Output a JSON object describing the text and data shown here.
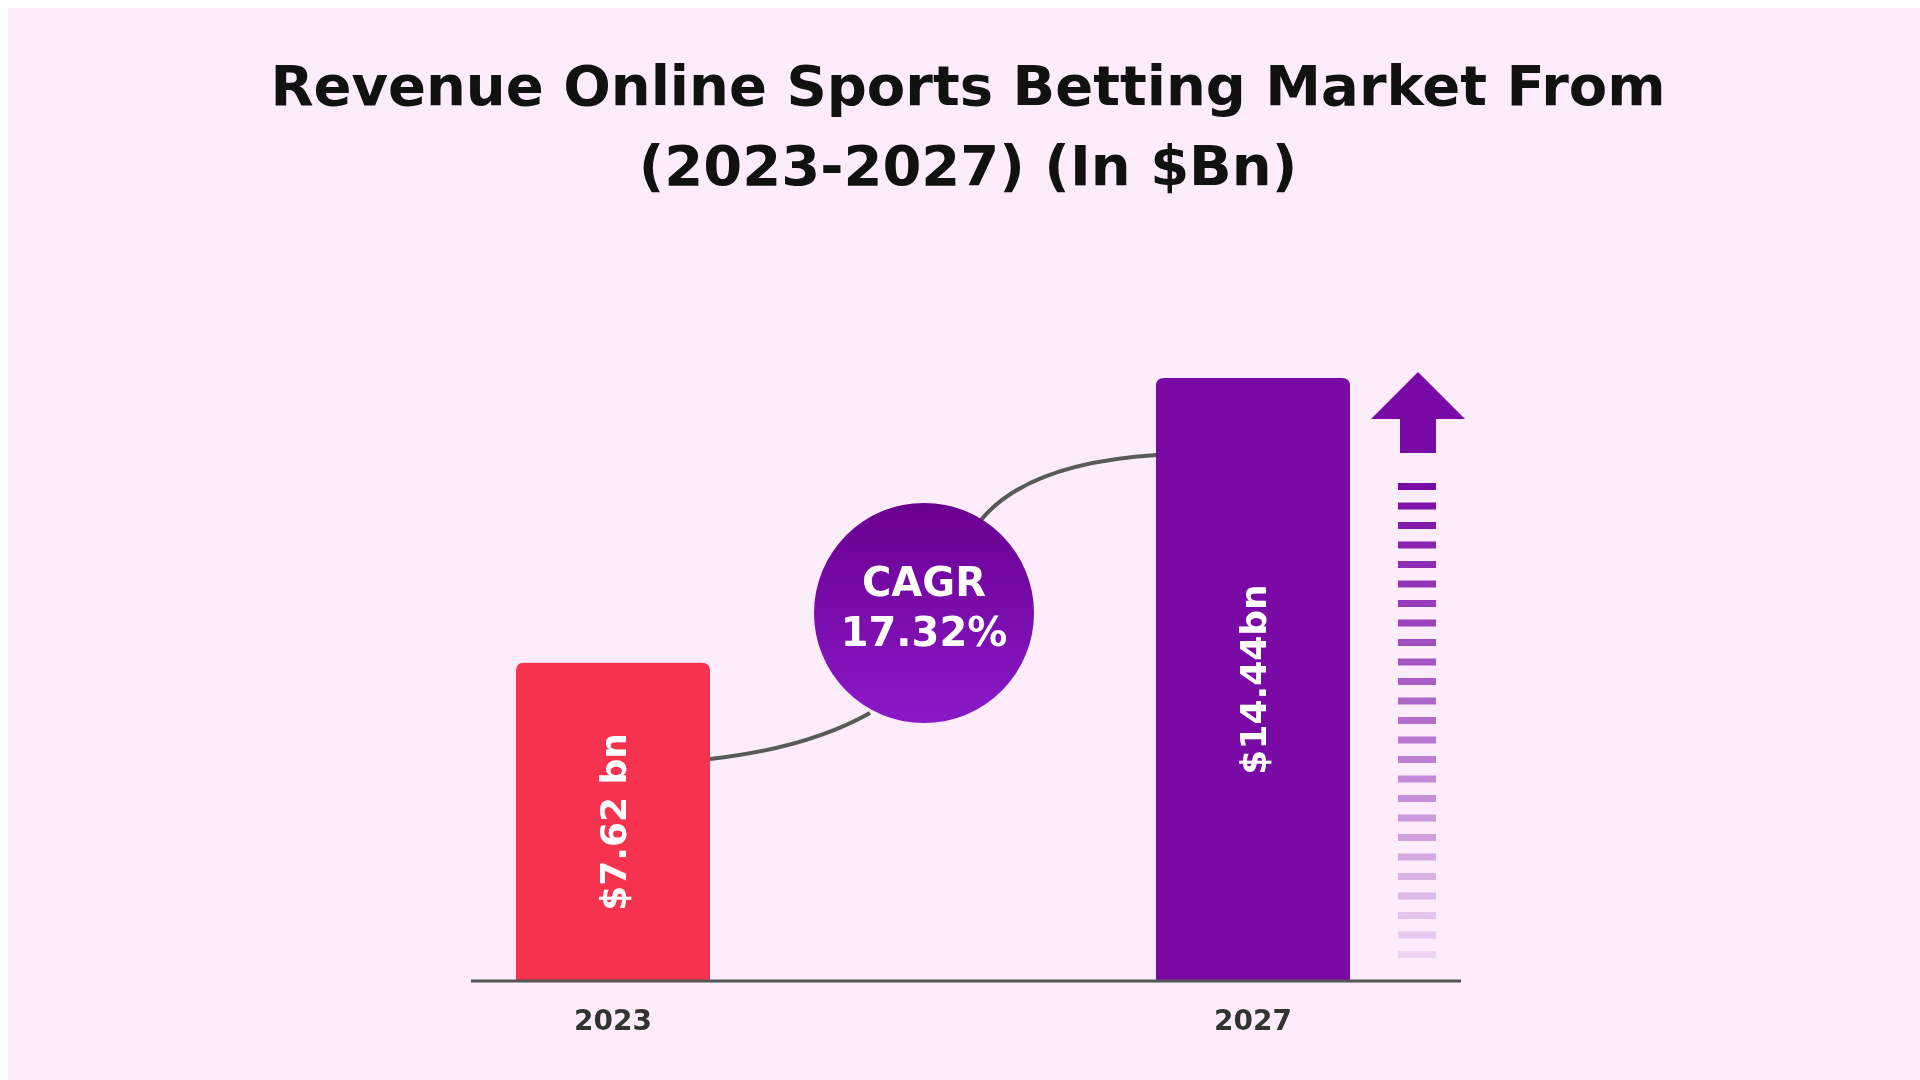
{
  "chart_data": {
    "type": "bar",
    "title": "Revenue Online Sports Betting Market From (2023-2027) (In $Bn)",
    "categories": [
      "2023",
      "2027"
    ],
    "values": [
      7.62,
      14.44
    ],
    "colors": [
      "#f5334f",
      "#7a0aa6"
    ],
    "value_labels": [
      "$7.62 bn",
      "$14.44bn"
    ],
    "annotations": [
      "CAGR 17.32%"
    ]
  }
}
